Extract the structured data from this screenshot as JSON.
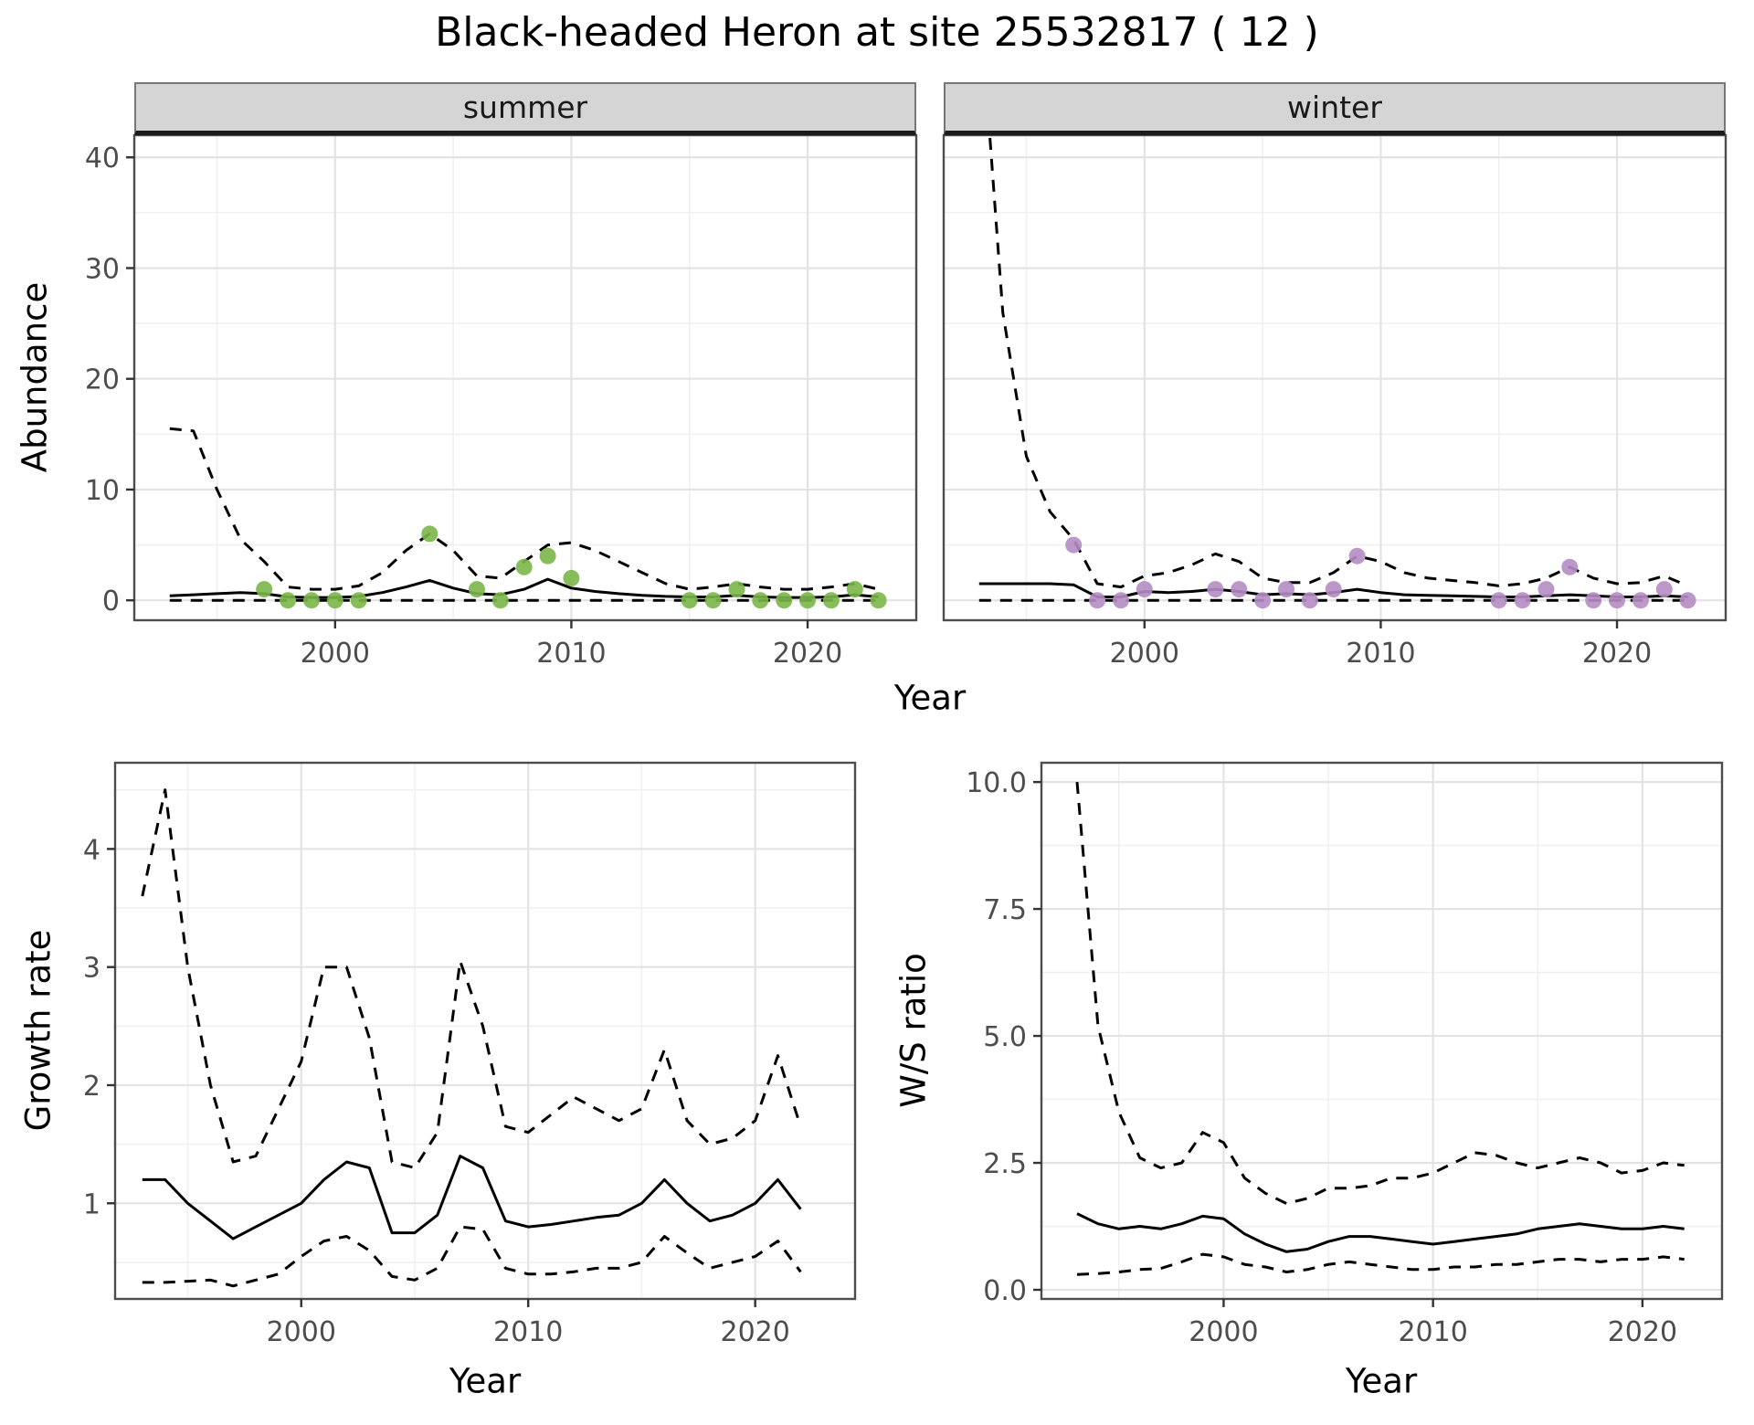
{
  "title": "Black-headed Heron at site 25532817 ( 12 )",
  "colors": {
    "summer_point": "#7ab648",
    "winter_point": "#b58cc4",
    "line": "#000000",
    "strip_bg": "#d5d5d5",
    "grid_major": "#e3e3e3",
    "grid_minor": "#f0f0f0",
    "panel_border": "#4d4d4d",
    "tick_text": "#4d4d4d",
    "background": "#ffffff"
  },
  "chart_data": [
    {
      "id": "abundance-summer",
      "type": "line",
      "facet": "summer",
      "xlabel": "Year",
      "ylabel": "Abundance",
      "xlim": [
        1993,
        2023
      ],
      "ylim": [
        0,
        40
      ],
      "xticks": [
        2000,
        2010,
        2020
      ],
      "xtick_labels": [
        "2000",
        "2010",
        "2020"
      ],
      "yticks": [
        0,
        10,
        20,
        30,
        40
      ],
      "ytick_labels": [
        "0",
        "10",
        "20",
        "30",
        "40"
      ],
      "xminor": [
        1995,
        2005,
        2015
      ],
      "yminor": [
        5,
        15,
        25,
        35
      ],
      "x": [
        1993,
        1994,
        1995,
        1996,
        1997,
        1998,
        1999,
        2000,
        2001,
        2002,
        2003,
        2004,
        2005,
        2006,
        2007,
        2008,
        2009,
        2010,
        2011,
        2012,
        2013,
        2014,
        2015,
        2016,
        2017,
        2018,
        2019,
        2020,
        2021,
        2022,
        2023
      ],
      "series": [
        {
          "name": "mean",
          "style": "solid",
          "values": [
            0.4,
            0.5,
            0.6,
            0.7,
            0.6,
            0.3,
            0.25,
            0.25,
            0.35,
            0.7,
            1.2,
            1.8,
            1.1,
            0.6,
            0.5,
            1.0,
            1.9,
            1.1,
            0.8,
            0.6,
            0.45,
            0.35,
            0.3,
            0.3,
            0.45,
            0.3,
            0.25,
            0.25,
            0.3,
            0.5,
            0.3
          ]
        },
        {
          "name": "upper_ci",
          "style": "dashed",
          "values": [
            15.5,
            15.3,
            10,
            5.5,
            3.5,
            1.2,
            1.0,
            1.0,
            1.3,
            2.5,
            4.5,
            6.0,
            4.5,
            2.2,
            2.0,
            3.5,
            5.0,
            5.2,
            4.5,
            3.5,
            2.5,
            1.5,
            1.0,
            1.2,
            1.5,
            1.2,
            1.0,
            1.0,
            1.2,
            1.5,
            1.0
          ]
        },
        {
          "name": "lower_ci",
          "style": "dashed",
          "values": [
            0,
            0,
            0,
            0,
            0,
            0,
            0,
            0,
            0,
            0,
            0,
            0,
            0,
            0,
            0,
            0,
            0,
            0,
            0,
            0,
            0,
            0,
            0,
            0,
            0,
            0,
            0,
            0,
            0,
            0,
            0
          ]
        }
      ],
      "points": {
        "name": "observed_counts",
        "color": "#7ab648",
        "x": [
          1997,
          1998,
          1999,
          2000,
          2001,
          2004,
          2006,
          2007,
          2008,
          2009,
          2010,
          2015,
          2016,
          2017,
          2018,
          2019,
          2020,
          2021,
          2022,
          2023
        ],
        "y": [
          1,
          0,
          0,
          0,
          0,
          6,
          1,
          0,
          3,
          4,
          2,
          0,
          0,
          1,
          0,
          0,
          0,
          0,
          1,
          0
        ]
      }
    },
    {
      "id": "abundance-winter",
      "type": "line",
      "facet": "winter",
      "xlabel": "Year",
      "ylabel": "Abundance",
      "xlim": [
        1993,
        2023
      ],
      "ylim": [
        0,
        40
      ],
      "xticks": [
        2000,
        2010,
        2020
      ],
      "xtick_labels": [
        "2000",
        "2010",
        "2020"
      ],
      "yticks": [
        0,
        10,
        20,
        30,
        40
      ],
      "ytick_labels": [
        "0",
        "10",
        "20",
        "30",
        "40"
      ],
      "xminor": [
        1995,
        2005,
        2015
      ],
      "yminor": [
        5,
        15,
        25,
        35
      ],
      "x": [
        1993,
        1994,
        1995,
        1996,
        1997,
        1998,
        1999,
        2000,
        2001,
        2002,
        2003,
        2004,
        2005,
        2006,
        2007,
        2008,
        2009,
        2010,
        2011,
        2012,
        2013,
        2014,
        2015,
        2016,
        2017,
        2018,
        2019,
        2020,
        2021,
        2022,
        2023
      ],
      "series": [
        {
          "name": "mean",
          "style": "solid",
          "values": [
            1.5,
            1.5,
            1.5,
            1.5,
            1.4,
            0.3,
            0.3,
            0.8,
            0.7,
            0.8,
            1.0,
            0.8,
            0.5,
            0.6,
            0.5,
            0.7,
            1.0,
            0.7,
            0.5,
            0.45,
            0.4,
            0.35,
            0.3,
            0.3,
            0.4,
            0.5,
            0.4,
            0.3,
            0.3,
            0.4,
            0.3
          ]
        },
        {
          "name": "upper_ci",
          "style": "dashed",
          "values": [
            55,
            26,
            13,
            8,
            5.5,
            1.5,
            1.2,
            2.2,
            2.5,
            3.2,
            4.2,
            3.5,
            2.0,
            1.6,
            1.6,
            2.5,
            4.0,
            3.5,
            2.5,
            2.0,
            1.8,
            1.6,
            1.3,
            1.5,
            2.0,
            3.0,
            2.0,
            1.5,
            1.6,
            2.2,
            1.3
          ]
        },
        {
          "name": "lower_ci",
          "style": "dashed",
          "values": [
            0,
            0,
            0,
            0,
            0,
            0,
            0,
            0,
            0,
            0,
            0,
            0,
            0,
            0,
            0,
            0,
            0,
            0,
            0,
            0,
            0,
            0,
            0,
            0,
            0,
            0,
            0,
            0,
            0,
            0,
            0
          ]
        }
      ],
      "points": {
        "name": "observed_counts",
        "color": "#b58cc4",
        "x": [
          1997,
          1998,
          1999,
          2000,
          2003,
          2004,
          2005,
          2006,
          2007,
          2008,
          2009,
          2015,
          2016,
          2017,
          2018,
          2019,
          2020,
          2021,
          2022,
          2023
        ],
        "y": [
          5,
          0,
          0,
          1,
          1,
          1,
          0,
          1,
          0,
          1,
          4,
          0,
          0,
          1,
          3,
          0,
          0,
          0,
          1,
          0
        ]
      }
    },
    {
      "id": "growth-rate",
      "type": "line",
      "xlabel": "Year",
      "ylabel": "Growth rate",
      "xlim": [
        1993,
        2022
      ],
      "ylim": [
        0.2,
        4.6
      ],
      "xticks": [
        2000,
        2010,
        2020
      ],
      "xtick_labels": [
        "2000",
        "2010",
        "2020"
      ],
      "yticks": [
        1,
        2,
        3,
        4
      ],
      "ytick_labels": [
        "1",
        "2",
        "3",
        "4"
      ],
      "xminor": [
        1995,
        2005,
        2015
      ],
      "yminor": [
        0.5,
        1.5,
        2.5,
        3.5,
        4.5
      ],
      "x": [
        1993,
        1994,
        1995,
        1996,
        1997,
        1998,
        1999,
        2000,
        2001,
        2002,
        2003,
        2004,
        2005,
        2006,
        2007,
        2008,
        2009,
        2010,
        2011,
        2012,
        2013,
        2014,
        2015,
        2016,
        2017,
        2018,
        2019,
        2020,
        2021,
        2022
      ],
      "series": [
        {
          "name": "mean",
          "style": "solid",
          "values": [
            1.2,
            1.2,
            1.0,
            0.85,
            0.7,
            0.8,
            0.9,
            1.0,
            1.2,
            1.35,
            1.3,
            0.75,
            0.75,
            0.9,
            1.4,
            1.3,
            0.85,
            0.8,
            0.82,
            0.85,
            0.88,
            0.9,
            1.0,
            1.2,
            1.0,
            0.85,
            0.9,
            1.0,
            1.2,
            0.95
          ]
        },
        {
          "name": "upper_ci",
          "style": "dashed",
          "values": [
            3.6,
            4.5,
            3.0,
            2.0,
            1.35,
            1.4,
            1.8,
            2.2,
            3.0,
            3.0,
            2.4,
            1.35,
            1.3,
            1.6,
            3.05,
            2.5,
            1.65,
            1.6,
            1.75,
            1.9,
            1.8,
            1.7,
            1.8,
            2.3,
            1.7,
            1.5,
            1.55,
            1.7,
            2.25,
            1.65
          ]
        },
        {
          "name": "lower_ci",
          "style": "dashed",
          "values": [
            0.33,
            0.33,
            0.34,
            0.35,
            0.3,
            0.35,
            0.4,
            0.55,
            0.68,
            0.72,
            0.6,
            0.38,
            0.35,
            0.45,
            0.8,
            0.78,
            0.45,
            0.4,
            0.4,
            0.42,
            0.45,
            0.45,
            0.5,
            0.72,
            0.58,
            0.45,
            0.5,
            0.55,
            0.68,
            0.42
          ]
        }
      ]
    },
    {
      "id": "ws-ratio",
      "type": "line",
      "xlabel": "Year",
      "ylabel": "W/S ratio",
      "xlim": [
        1993,
        2022
      ],
      "ylim": [
        0,
        10
      ],
      "xticks": [
        2000,
        2010,
        2020
      ],
      "xtick_labels": [
        "2000",
        "2010",
        "2020"
      ],
      "yticks": [
        0,
        2.5,
        5,
        7.5,
        10
      ],
      "ytick_labels": [
        "0.0",
        "2.5",
        "5.0",
        "7.5",
        "10.0"
      ],
      "xminor": [
        1995,
        2005,
        2015
      ],
      "yminor": [
        1.25,
        3.75,
        6.25,
        8.75
      ],
      "x": [
        1993,
        1994,
        1995,
        1996,
        1997,
        1998,
        1999,
        2000,
        2001,
        2002,
        2003,
        2004,
        2005,
        2006,
        2007,
        2008,
        2009,
        2010,
        2011,
        2012,
        2013,
        2014,
        2015,
        2016,
        2017,
        2018,
        2019,
        2020,
        2021,
        2022
      ],
      "series": [
        {
          "name": "mean",
          "style": "solid",
          "values": [
            1.5,
            1.3,
            1.2,
            1.25,
            1.2,
            1.3,
            1.45,
            1.4,
            1.1,
            0.9,
            0.75,
            0.8,
            0.95,
            1.05,
            1.05,
            1.0,
            0.95,
            0.9,
            0.95,
            1.0,
            1.05,
            1.1,
            1.2,
            1.25,
            1.3,
            1.25,
            1.2,
            1.2,
            1.25,
            1.2
          ]
        },
        {
          "name": "upper_ci",
          "style": "dashed",
          "values": [
            10,
            5.2,
            3.5,
            2.6,
            2.4,
            2.5,
            3.1,
            2.9,
            2.2,
            1.9,
            1.7,
            1.8,
            2.0,
            2.0,
            2.05,
            2.2,
            2.2,
            2.3,
            2.5,
            2.7,
            2.65,
            2.5,
            2.4,
            2.5,
            2.6,
            2.5,
            2.3,
            2.35,
            2.5,
            2.45
          ]
        },
        {
          "name": "lower_ci",
          "style": "dashed",
          "values": [
            0.3,
            0.32,
            0.35,
            0.4,
            0.42,
            0.55,
            0.7,
            0.65,
            0.5,
            0.45,
            0.35,
            0.4,
            0.5,
            0.55,
            0.5,
            0.45,
            0.4,
            0.4,
            0.45,
            0.45,
            0.5,
            0.5,
            0.55,
            0.6,
            0.6,
            0.55,
            0.6,
            0.6,
            0.65,
            0.6
          ]
        }
      ]
    }
  ]
}
